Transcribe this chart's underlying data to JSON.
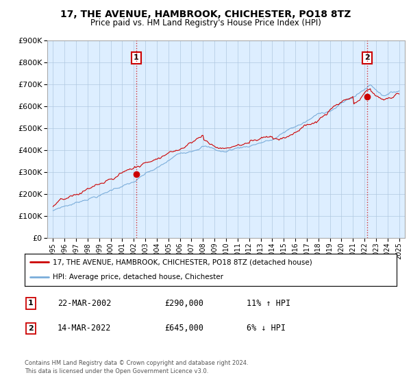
{
  "title": "17, THE AVENUE, HAMBROOK, CHICHESTER, PO18 8TZ",
  "subtitle": "Price paid vs. HM Land Registry's House Price Index (HPI)",
  "ylim": [
    0,
    900000
  ],
  "yticks": [
    0,
    100000,
    200000,
    300000,
    400000,
    500000,
    600000,
    700000,
    800000,
    900000
  ],
  "line1_color": "#cc0000",
  "line2_color": "#7aadda",
  "line1_label": "17, THE AVENUE, HAMBROOK, CHICHESTER, PO18 8TZ (detached house)",
  "line2_label": "HPI: Average price, detached house, Chichester",
  "annotation1_date": "22-MAR-2002",
  "annotation1_price": "£290,000",
  "annotation1_hpi": "11% ↑ HPI",
  "annotation2_date": "14-MAR-2022",
  "annotation2_price": "£645,000",
  "annotation2_hpi": "6% ↓ HPI",
  "footer": "Contains HM Land Registry data © Crown copyright and database right 2024.\nThis data is licensed under the Open Government Licence v3.0.",
  "point1_year": 2002.22,
  "point1_value": 290000,
  "point2_year": 2022.22,
  "point2_value": 645000,
  "vline1_year": 2002.22,
  "vline2_year": 2022.22,
  "bg_color": "#ddeeff"
}
